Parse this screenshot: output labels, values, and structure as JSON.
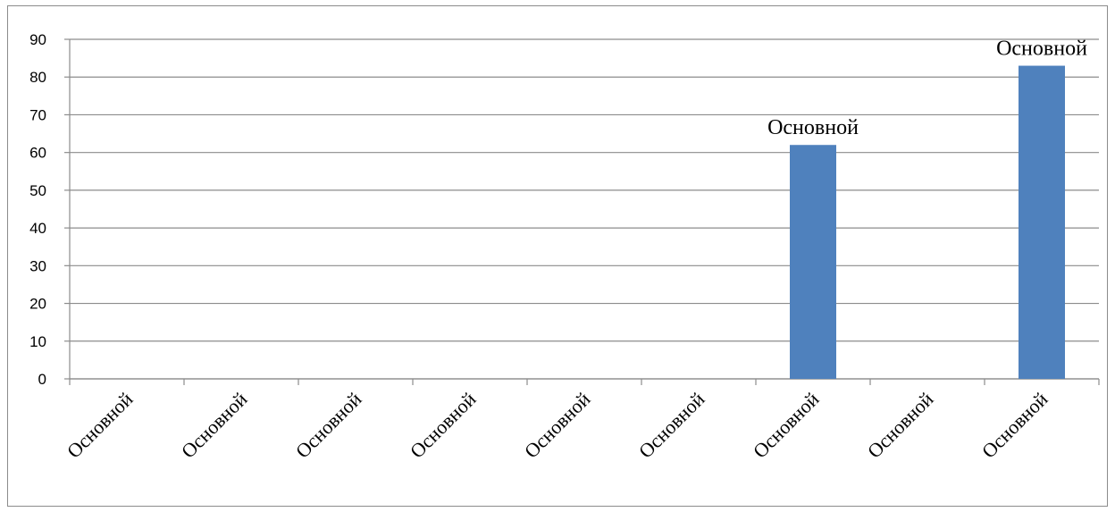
{
  "chart_data": {
    "type": "bar",
    "categories": [
      "Основной",
      "Основной",
      "Основной",
      "Основной",
      "Основной",
      "Основной",
      "Основной",
      "Основной",
      "Основной"
    ],
    "values": [
      0,
      0,
      0,
      0,
      0,
      0,
      62,
      0,
      83
    ],
    "data_labels": [
      "",
      "",
      "",
      "",
      "",
      "",
      "Основной",
      "",
      "Основной"
    ],
    "ylim": [
      0,
      90
    ],
    "yticks": [
      0,
      10,
      20,
      30,
      40,
      50,
      60,
      70,
      80,
      90
    ],
    "title": "",
    "xlabel": "",
    "ylabel": "",
    "grid": true,
    "legend": "none",
    "bar_color": "#4f81bd",
    "grid_color": "#8c8c8c"
  }
}
